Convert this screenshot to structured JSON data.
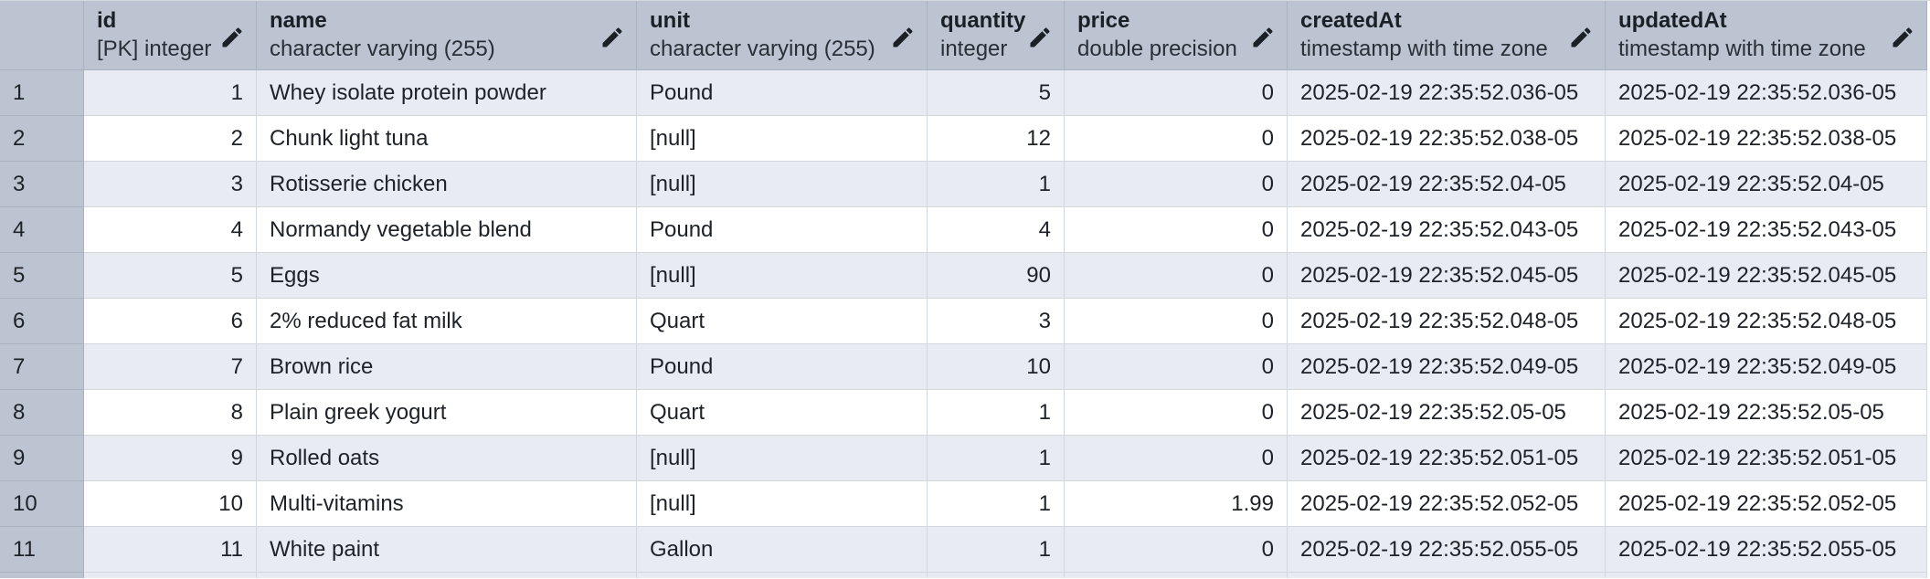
{
  "columns": [
    {
      "name": "id",
      "type": "[PK] integer",
      "align": "right"
    },
    {
      "name": "name",
      "type": "character varying (255)",
      "align": "left"
    },
    {
      "name": "unit",
      "type": "character varying (255)",
      "align": "left"
    },
    {
      "name": "quantity",
      "type": "integer",
      "align": "right"
    },
    {
      "name": "price",
      "type": "double precision",
      "align": "right"
    },
    {
      "name": "createdAt",
      "type": "timestamp with time zone",
      "align": "left"
    },
    {
      "name": "updatedAt",
      "type": "timestamp with time zone",
      "align": "left"
    }
  ],
  "rows": [
    {
      "num": "1",
      "cells": [
        "1",
        "Whey isolate protein powder",
        "Pound",
        "5",
        "0",
        "2025-02-19 22:35:52.036-05",
        "2025-02-19 22:35:52.036-05"
      ]
    },
    {
      "num": "2",
      "cells": [
        "2",
        "Chunk light tuna",
        "[null]",
        "12",
        "0",
        "2025-02-19 22:35:52.038-05",
        "2025-02-19 22:35:52.038-05"
      ]
    },
    {
      "num": "3",
      "cells": [
        "3",
        "Rotisserie chicken",
        "[null]",
        "1",
        "0",
        "2025-02-19 22:35:52.04-05",
        "2025-02-19 22:35:52.04-05"
      ]
    },
    {
      "num": "4",
      "cells": [
        "4",
        "Normandy vegetable blend",
        "Pound",
        "4",
        "0",
        "2025-02-19 22:35:52.043-05",
        "2025-02-19 22:35:52.043-05"
      ]
    },
    {
      "num": "5",
      "cells": [
        "5",
        "Eggs",
        "[null]",
        "90",
        "0",
        "2025-02-19 22:35:52.045-05",
        "2025-02-19 22:35:52.045-05"
      ]
    },
    {
      "num": "6",
      "cells": [
        "6",
        "2% reduced fat milk",
        "Quart",
        "3",
        "0",
        "2025-02-19 22:35:52.048-05",
        "2025-02-19 22:35:52.048-05"
      ]
    },
    {
      "num": "7",
      "cells": [
        "7",
        "Brown rice",
        "Pound",
        "10",
        "0",
        "2025-02-19 22:35:52.049-05",
        "2025-02-19 22:35:52.049-05"
      ]
    },
    {
      "num": "8",
      "cells": [
        "8",
        "Plain greek yogurt",
        "Quart",
        "1",
        "0",
        "2025-02-19 22:35:52.05-05",
        "2025-02-19 22:35:52.05-05"
      ]
    },
    {
      "num": "9",
      "cells": [
        "9",
        "Rolled oats",
        "[null]",
        "1",
        "0",
        "2025-02-19 22:35:52.051-05",
        "2025-02-19 22:35:52.051-05"
      ]
    },
    {
      "num": "10",
      "cells": [
        "10",
        "Multi-vitamins",
        "[null]",
        "1",
        "1.99",
        "2025-02-19 22:35:52.052-05",
        "2025-02-19 22:35:52.052-05"
      ]
    },
    {
      "num": "11",
      "cells": [
        "11",
        "White paint",
        "Gallon",
        "1",
        "0",
        "2025-02-19 22:35:52.055-05",
        "2025-02-19 22:35:52.055-05"
      ]
    }
  ],
  "icons": {
    "column_edit": "pencil-icon"
  },
  "colors": {
    "header_bg": "#bcc4d1",
    "alt_row_bg": "#e8ebf1",
    "row_bg": "#ffffff"
  }
}
